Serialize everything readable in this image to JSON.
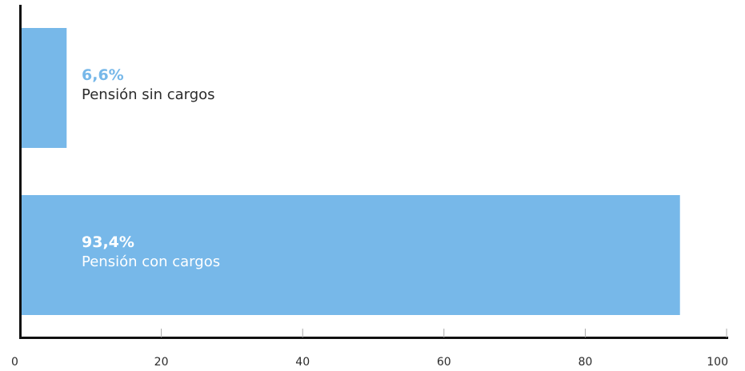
{
  "chart_data": {
    "type": "bar",
    "orientation": "horizontal",
    "title": "",
    "xlabel": "",
    "ylabel": "",
    "xlim": [
      0,
      100
    ],
    "x_ticks": [
      "0",
      "20",
      "40",
      "60",
      "80",
      "100"
    ],
    "grid": false,
    "legend": "none",
    "bar_color": "#77b8e9",
    "categories": [
      "Pensión sin cargos",
      "Pensión con cargos"
    ],
    "values": [
      6.6,
      93.4
    ],
    "value_labels": [
      "6,6%",
      "93,4%"
    ],
    "value_label_colors": [
      "#77b8e9",
      "#ffffff"
    ],
    "category_label_colors": [
      "#2b2b2b",
      "#ffffff"
    ]
  }
}
